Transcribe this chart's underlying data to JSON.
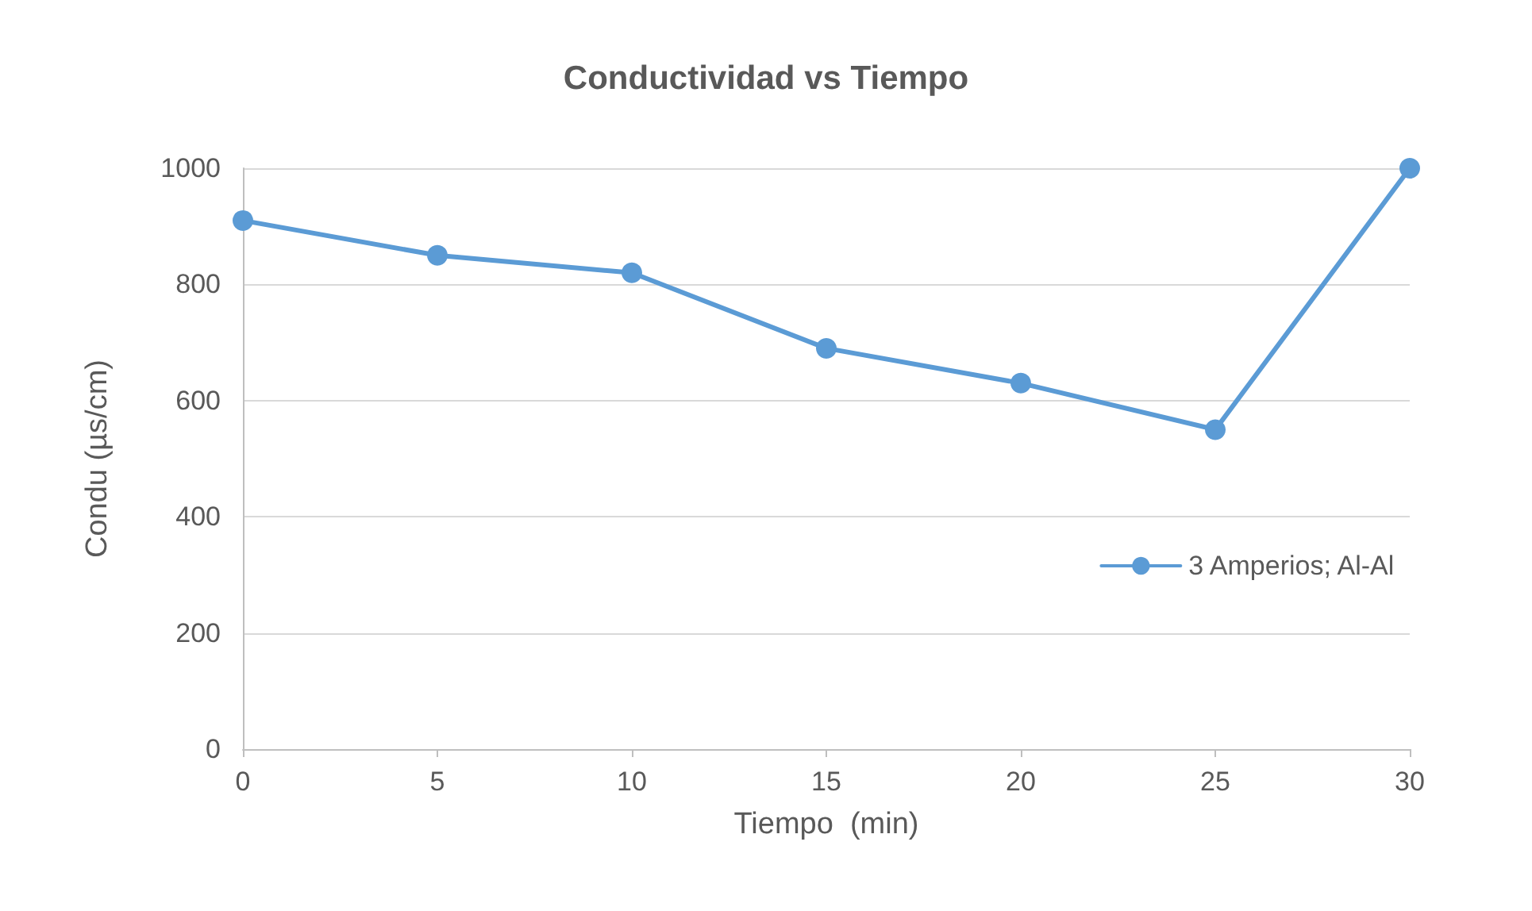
{
  "chart_data": {
    "type": "line",
    "title": "Conductividad vs Tiempo",
    "xlabel": "Tiempo  (min)",
    "ylabel": "Condu (µs/cm)",
    "x": [
      0,
      5,
      10,
      15,
      20,
      25,
      30
    ],
    "series": [
      {
        "name": "3 Amperios; Al-Al",
        "color": "#5b9bd5",
        "values": [
          910,
          850,
          820,
          690,
          630,
          550,
          1000
        ]
      }
    ],
    "xlim": [
      0,
      30
    ],
    "xticks": [
      0,
      5,
      10,
      15,
      20,
      25,
      30
    ],
    "ylim": [
      0,
      1000
    ],
    "yticks": [
      0,
      200,
      400,
      600,
      800,
      1000
    ],
    "grid": "y",
    "legend": "right",
    "marker": "circle",
    "line_style": "solid"
  }
}
